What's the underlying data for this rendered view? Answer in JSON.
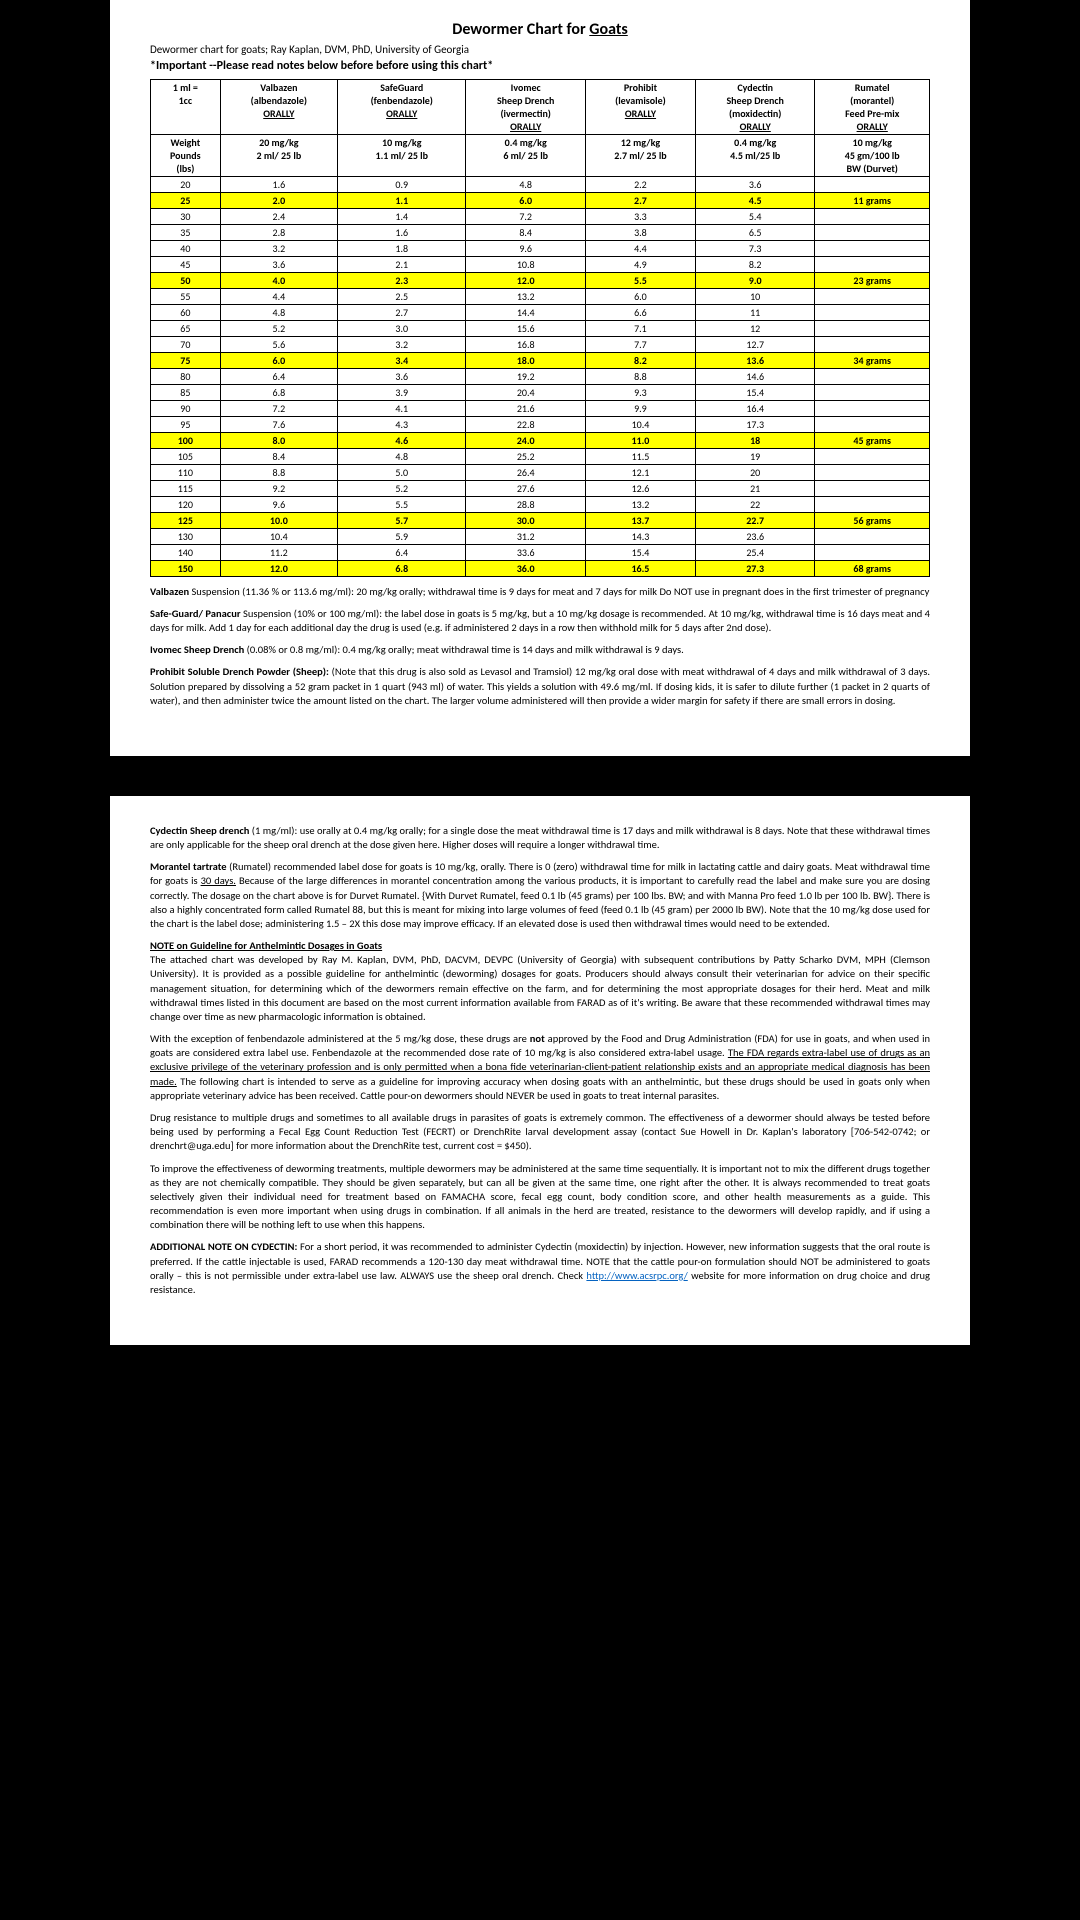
{
  "title": {
    "pre": "Dewormer Chart for ",
    "u": "Goats"
  },
  "subtitle": "Dewormer chart for goats; Ray Kaplan, DVM, PhD, University of Georgia",
  "notice": "*Important --Please read notes below before before using this chart*",
  "unitCell": {
    "l1": "1 ml =",
    "l2": "1cc"
  },
  "drugs": [
    {
      "n": "Valbazen",
      "g": "(albendazole)",
      "r": "ORALLY",
      "d1": "20 mg/kg",
      "d2": "2 ml/ 25 lb"
    },
    {
      "n": "SafeGuard",
      "g": "(fenbendazole)",
      "r": "ORALLY",
      "d1": "10 mg/kg",
      "d2": "1.1 ml/ 25 lb"
    },
    {
      "n": "Ivomec",
      "g": "Sheep Drench",
      "r": "(ivermectin)",
      "r2": "ORALLY",
      "d1": "0.4 mg/kg",
      "d2": "6 ml/ 25 lb"
    },
    {
      "n": "Prohibit",
      "g": "(levamisole)",
      "r": "ORALLY",
      "d1": "12 mg/kg",
      "d2": "2.7 ml/ 25 lb"
    },
    {
      "n": "Cydectin",
      "g": "Sheep Drench",
      "r": "(moxidectin)",
      "r2": "ORALLY",
      "d1": "0.4 mg/kg",
      "d2": "4.5 ml/25 lb"
    },
    {
      "n": "Rumatel",
      "g": "(morantel)",
      "r": "Feed Pre-mix",
      "r2": "ORALLY",
      "d1": "10 mg/kg",
      "d2": "45 gm/100 lb",
      "d3": "BW (Durvet)"
    }
  ],
  "weightHdr": {
    "l1": "Weight",
    "l2": "Pounds",
    "l3": "(lbs)"
  },
  "rows": [
    {
      "w": "20",
      "v": [
        "1.6",
        "0.9",
        "4.8",
        "2.2",
        "3.6",
        ""
      ]
    },
    {
      "w": "25",
      "v": [
        "2.0",
        "1.1",
        "6.0",
        "2.7",
        "4.5",
        "11 grams"
      ],
      "hl": 1
    },
    {
      "w": "30",
      "v": [
        "2.4",
        "1.4",
        "7.2",
        "3.3",
        "5.4",
        ""
      ]
    },
    {
      "w": "35",
      "v": [
        "2.8",
        "1.6",
        "8.4",
        "3.8",
        "6.5",
        ""
      ]
    },
    {
      "w": "40",
      "v": [
        "3.2",
        "1.8",
        "9.6",
        "4.4",
        "7.3",
        ""
      ]
    },
    {
      "w": "45",
      "v": [
        "3.6",
        "2.1",
        "10.8",
        "4.9",
        "8.2",
        ""
      ]
    },
    {
      "w": "50",
      "v": [
        "4.0",
        "2.3",
        "12.0",
        "5.5",
        "9.0",
        "23 grams"
      ],
      "hl": 1
    },
    {
      "w": "55",
      "v": [
        "4.4",
        "2.5",
        "13.2",
        "6.0",
        "10",
        ""
      ]
    },
    {
      "w": "60",
      "v": [
        "4.8",
        "2.7",
        "14.4",
        "6.6",
        "11",
        ""
      ]
    },
    {
      "w": "65",
      "v": [
        "5.2",
        "3.0",
        "15.6",
        "7.1",
        "12",
        ""
      ]
    },
    {
      "w": "70",
      "v": [
        "5.6",
        "3.2",
        "16.8",
        "7.7",
        "12.7",
        ""
      ]
    },
    {
      "w": "75",
      "v": [
        "6.0",
        "3.4",
        "18.0",
        "8.2",
        "13.6",
        "34 grams"
      ],
      "hl": 1
    },
    {
      "w": "80",
      "v": [
        "6.4",
        "3.6",
        "19.2",
        "8.8",
        "14.6",
        ""
      ]
    },
    {
      "w": "85",
      "v": [
        "6.8",
        "3.9",
        "20.4",
        "9.3",
        "15.4",
        ""
      ]
    },
    {
      "w": "90",
      "v": [
        "7.2",
        "4.1",
        "21.6",
        "9.9",
        "16.4",
        ""
      ]
    },
    {
      "w": "95",
      "v": [
        "7.6",
        "4.3",
        "22.8",
        "10.4",
        "17.3",
        ""
      ]
    },
    {
      "w": "100",
      "v": [
        "8.0",
        "4.6",
        "24.0",
        "11.0",
        "18",
        "45 grams"
      ],
      "hl": 1
    },
    {
      "w": "105",
      "v": [
        "8.4",
        "4.8",
        "25.2",
        "11.5",
        "19",
        ""
      ]
    },
    {
      "w": "110",
      "v": [
        "8.8",
        "5.0",
        "26.4",
        "12.1",
        "20",
        ""
      ]
    },
    {
      "w": "115",
      "v": [
        "9.2",
        "5.2",
        "27.6",
        "12.6",
        "21",
        ""
      ]
    },
    {
      "w": "120",
      "v": [
        "9.6",
        "5.5",
        "28.8",
        "13.2",
        "22",
        ""
      ]
    },
    {
      "w": "125",
      "v": [
        "10.0",
        "5.7",
        "30.0",
        "13.7",
        "22.7",
        "56 grams"
      ],
      "hl": 1
    },
    {
      "w": "130",
      "v": [
        "10.4",
        "5.9",
        "31.2",
        "14.3",
        "23.6",
        ""
      ]
    },
    {
      "w": "140",
      "v": [
        "11.2",
        "6.4",
        "33.6",
        "15.4",
        "25.4",
        ""
      ]
    },
    {
      "w": "150",
      "v": [
        "12.0",
        "6.8",
        "36.0",
        "16.5",
        "27.3",
        "68 grams"
      ],
      "hl": 1
    }
  ],
  "notes1": [
    {
      "b": "Valbazen",
      "t": " Suspension (11.36 % or 113.6 mg/ml): 20 mg/kg orally; withdrawal time is 9 days for meat and 7 days for milk Do NOT use in pregnant does in the first trimester of pregnancy"
    },
    {
      "b": "Safe-Guard/ Panacur",
      "t": " Suspension (10% or 100 mg/ml): the label dose in goats is 5 mg/kg, but a 10 mg/kg dosage is recommended. At 10 mg/kg, withdrawal time is 16 days meat and 4 days for milk. Add 1 day for each additional day the drug is used (e.g. if administered 2 days in a row then withhold milk for 5 days after 2nd dose)."
    },
    {
      "b": "Ivomec Sheep Drench",
      "t": " (0.08% or 0.8 mg/ml): 0.4 mg/kg orally; meat withdrawal time is 14 days and milk withdrawal is 9 days."
    },
    {
      "b": "Prohibit Soluble Drench Powder (Sheep):",
      "t": " (Note that this drug is also sold as Levasol and Tramsiol) 12 mg/kg oral dose with meat withdrawal of 4 days and milk withdrawal of 3 days. Solution prepared by dissolving a 52 gram packet in 1 quart (943 ml) of water. This yields a solution with 49.6 mg/ml. If dosing kids, it is safer to dilute further (1 packet in 2 quarts of water), and then administer twice the amount listed on the chart. The larger volume administered will then provide a wider margin for safety if there are small errors in dosing."
    }
  ],
  "notes2": [
    {
      "b": "Cydectin Sheep drench",
      "t": " (1 mg/ml): use orally at 0.4 mg/kg orally; for a single dose the meat withdrawal time is 17 days and milk withdrawal is 8 days. Note that these withdrawal times are only applicable for the sheep oral drench at the dose given here. Higher doses will require a longer withdrawal time."
    },
    {
      "b": "Morantel tartrate",
      "html": " (Rumatel) recommended label dose for goats is 10 mg/kg, orally. There is 0 (zero) withdrawal time for milk in lactating cattle and dairy goats. Meat withdrawal time for goats is <span class='u'>30 days.</span> Because of the large differences in morantel concentration among the various products, it is important to carefully read the label and make sure you are dosing correctly. The dosage on the chart above is for Durvet Rumatel. {With Durvet Rumatel, feed 0.1 lb (45 grams) per 100 lbs. BW; and with Manna Pro feed 1.0 lb per 100 lb. BW}. There is also a highly concentrated form called Rumatel 88, but this is meant for mixing into large volumes of feed (feed 0.1 lb (45 gram) per 2000 lb BW). Note that the 10 mg/kg dose used for the chart is the label dose; administering 1.5 – 2X this dose may improve efficacy. If an elevated dose is used then withdrawal times would need to be extended."
    }
  ],
  "guidelineHdr": "NOTE on Guideline for Anthelmintic Dosages in Goats",
  "guideline": [
    "The attached chart was developed by Ray M. Kaplan, DVM, PhD, DACVM, DEVPC (University of Georgia) with subsequent contributions by Patty Scharko DVM, MPH (Clemson University). It is provided as a possible guideline for anthelmintic (deworming) dosages for goats. Producers should always consult their veterinarian for advice on their specific management situation, for determining which of the dewormers remain effective on the farm, and for determining the most appropriate dosages for their herd. Meat and milk withdrawal times listed in this document are based on the most current information available from FARAD as of it's writing. Be aware that these recommended withdrawal times may change over time as new pharmacologic information is obtained."
  ],
  "para2": "With the exception of fenbendazole administered at the 5 mg/kg dose, these drugs are <b>not</b> approved by the Food and Drug Administration (FDA) for use in goats, and when used in goats are considered extra label use. Fenbendazole at the recommended dose rate of 10 mg/kg is also considered extra-label usage. <span class='u'>The FDA regards extra-label use of drugs as an exclusive privilege of the veterinary profession and is only permitted when a bona fide veterinarian-client-patient relationship exists and an appropriate medical diagnosis has been made.</span> The following chart is intended to serve as a guideline for improving accuracy when dosing goats with an anthelmintic, but these drugs should be used in goats only when appropriate veterinary advice has been received. Cattle pour-on dewormers should NEVER be used in goats to treat internal parasites.",
  "para3": "Drug resistance to multiple drugs and sometimes to all available drugs in parasites of goats is extremely common. The effectiveness of a dewormer should always be tested before being used by performing a Fecal Egg Count Reduction Test (FECRT) or DrenchRite larval development assay (contact Sue Howell in Dr. Kaplan's laboratory [706-542-0742; or drenchrt@uga.edu] for more information about the DrenchRite test, current cost = $450).",
  "para4": "To improve the effectiveness of deworming treatments, multiple dewormers may be administered at the same time sequentially. It is important not to mix the different drugs together as they are not chemically compatible. They should be given separately, but can all be given at the same time, one right after the other. It is always recommended to treat goats selectively given their individual need for treatment based on FAMACHA score, fecal egg count, body condition score, and other health measurements as a guide. This recommendation is even more important when using drugs in combination. If all animals in the herd are treated, resistance to the dewormers will develop rapidly, and if using a combination there will be nothing left to use when this happens.",
  "para5": {
    "b": "ADDITIONAL NOTE ON CYDECTIN:",
    "t": " For a short period, it was recommended to administer Cydectin (moxidectin) by injection. However, new information suggests that the oral route is preferred. If the cattle injectable is used, FARAD recommends a 120-130 day meat withdrawal time. NOTE that the cattle pour-on formulation should NOT be administered to goats orally – this is not permissible under extra-label use law. ALWAYS use the sheep oral drench. Check ",
    "link": "http://www.acsrpc.org/",
    "t2": " website for more information on drug choice and drug resistance."
  }
}
